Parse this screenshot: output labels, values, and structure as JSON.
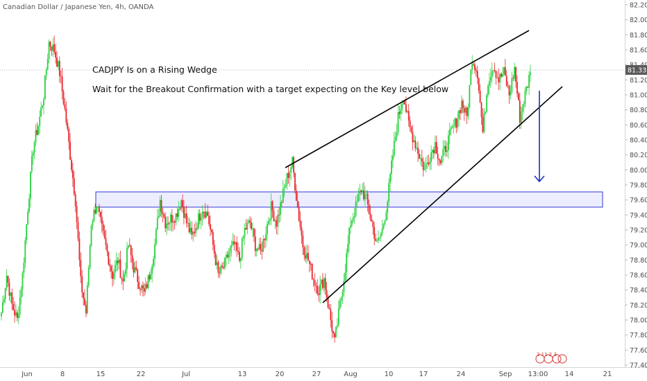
{
  "header": {
    "symbol_title": "Canadian Dollar / Japanese Yen, 4h, OANDA"
  },
  "annotations": {
    "line1": "CADJPY Is on a Rising Wedge",
    "line2": "Wait for the Breakout Confirmation with a target expecting on the Key level below"
  },
  "price_badge": "81.334",
  "events_marker": "2 11 2 3",
  "colors": {
    "up": "#26d13d",
    "down": "#e8242a",
    "zone_fill": "#eceeff",
    "zone_stroke": "#2f37d6",
    "arrow": "#1c2fb8",
    "badge_bg": "#5a5a5a",
    "axis_text": "#4a4a4a",
    "event_marker": "#d9534f"
  },
  "chart_data": {
    "type": "candlestick",
    "title": "Canadian Dollar / Japanese Yen, 4h, OANDA",
    "y_ticks": [
      "82.200",
      "82.000",
      "81.800",
      "81.600",
      "81.400",
      "81.200",
      "81.000",
      "80.800",
      "80.600",
      "80.400",
      "80.200",
      "80.000",
      "79.800",
      "79.600",
      "79.400",
      "79.200",
      "79.000",
      "78.800",
      "78.600",
      "78.400",
      "78.200",
      "78.000",
      "77.800",
      "77.600",
      "77.400"
    ],
    "x_ticks": [
      "Jun",
      "8",
      "15",
      "22",
      "Jul",
      "13",
      "20",
      "27",
      "Aug",
      "10",
      "17",
      "24",
      "Sep",
      "13:00",
      "14",
      "21"
    ],
    "ylim": [
      77.4,
      82.2
    ],
    "last_price": 81.334,
    "key_level_zone": {
      "low": 79.5,
      "high": 79.7
    },
    "wedge_upper_line": {
      "from": {
        "date": "Jul 21",
        "price": 80.02
      },
      "to": {
        "date": "Sep 5",
        "price": 81.9
      }
    },
    "wedge_lower_line": {
      "from": {
        "date": "Jul 27",
        "price": 78.26
      },
      "to": {
        "date": "Sep 8",
        "price": 81.08
      }
    },
    "path_points": [
      [
        78.1,
        "Jun 0"
      ],
      [
        78.6,
        "Jun 1"
      ],
      [
        78.2,
        "Jun 2"
      ],
      [
        78.0,
        "Jun 3"
      ],
      [
        78.6,
        "Jun 4"
      ],
      [
        79.5,
        "Jun 5"
      ],
      [
        80.3,
        "Jun 6"
      ],
      [
        80.6,
        "Jun 7"
      ],
      [
        81.0,
        "Jun 8"
      ],
      [
        81.7,
        "Jun 9"
      ],
      [
        81.6,
        "Jun 10"
      ],
      [
        81.3,
        "Jun 11"
      ],
      [
        80.8,
        "Jun 12"
      ],
      [
        80.2,
        "Jun 13"
      ],
      [
        79.6,
        "Jun 14"
      ],
      [
        78.5,
        "Jun 15"
      ],
      [
        78.1,
        "Jun 16"
      ],
      [
        79.3,
        "Jun 17"
      ],
      [
        79.55,
        "Jun 18"
      ],
      [
        79.2,
        "Jun 19"
      ],
      [
        78.9,
        "Jun 20"
      ],
      [
        78.6,
        "Jun 21"
      ],
      [
        78.8,
        "Jun 22"
      ],
      [
        78.5,
        "Jun 23"
      ],
      [
        79.0,
        "Jun 24"
      ],
      [
        78.7,
        "Jun 25"
      ],
      [
        78.5,
        "Jun 26"
      ],
      [
        78.35,
        "Jun 27"
      ],
      [
        78.6,
        "Jun 28"
      ],
      [
        79.0,
        "Jun 29"
      ],
      [
        79.6,
        "Jul 1"
      ],
      [
        79.3,
        "Jul 2"
      ],
      [
        79.35,
        "Jul 3"
      ],
      [
        79.4,
        "Jul 4"
      ],
      [
        79.6,
        "Jul 5"
      ],
      [
        79.3,
        "Jul 6"
      ],
      [
        79.1,
        "Jul 7"
      ],
      [
        79.3,
        "Jul 8"
      ],
      [
        79.5,
        "Jul 9"
      ],
      [
        79.4,
        "Jul 10"
      ],
      [
        79.0,
        "Jul 11"
      ],
      [
        78.6,
        "Jul 12"
      ],
      [
        78.7,
        "Jul 13"
      ],
      [
        78.9,
        "Jul 14"
      ],
      [
        79.0,
        "Jul 15"
      ],
      [
        78.8,
        "Jul 16"
      ],
      [
        79.2,
        "Jul 17"
      ],
      [
        79.3,
        "Jul 18"
      ],
      [
        79.0,
        "Jul 19"
      ],
      [
        78.9,
        "Jul 20"
      ],
      [
        79.2,
        "Jul 21"
      ],
      [
        79.5,
        "Jul 22"
      ],
      [
        79.3,
        "Jul 23"
      ],
      [
        79.6,
        "Jul 24"
      ],
      [
        79.9,
        "Jul 25"
      ],
      [
        80.1,
        "Jul 26"
      ],
      [
        79.5,
        "Jul 27"
      ],
      [
        79.0,
        "Jul 28"
      ],
      [
        78.8,
        "Jul 29"
      ],
      [
        78.55,
        "Jul 30"
      ],
      [
        78.4,
        "Jul 31"
      ],
      [
        78.55,
        "Aug 1"
      ],
      [
        78.1,
        "Aug 2"
      ],
      [
        77.7,
        "Aug 3"
      ],
      [
        78.2,
        "Aug 4"
      ],
      [
        78.7,
        "Aug 5"
      ],
      [
        79.3,
        "Aug 6"
      ],
      [
        79.5,
        "Aug 7"
      ],
      [
        79.75,
        "Aug 8"
      ],
      [
        79.6,
        "Aug 9"
      ],
      [
        79.3,
        "Aug 10"
      ],
      [
        79.0,
        "Aug 11"
      ],
      [
        79.2,
        "Aug 12"
      ],
      [
        79.6,
        "Aug 13"
      ],
      [
        80.2,
        "Aug 14"
      ],
      [
        80.7,
        "Aug 15"
      ],
      [
        81.0,
        "Aug 16"
      ],
      [
        80.6,
        "Aug 17"
      ],
      [
        80.4,
        "Aug 18"
      ],
      [
        80.2,
        "Aug 19"
      ],
      [
        80.0,
        "Aug 20"
      ],
      [
        80.2,
        "Aug 21"
      ],
      [
        80.35,
        "Aug 22"
      ],
      [
        80.1,
        "Aug 23"
      ],
      [
        80.3,
        "Aug 24"
      ],
      [
        80.5,
        "Aug 25"
      ],
      [
        80.65,
        "Aug 26"
      ],
      [
        80.9,
        "Aug 27"
      ],
      [
        80.7,
        "Aug 28"
      ],
      [
        81.5,
        "Aug 29"
      ],
      [
        81.3,
        "Aug 30"
      ],
      [
        80.5,
        "Aug 31"
      ],
      [
        81.2,
        "Sep 1"
      ],
      [
        81.4,
        "Sep 2"
      ],
      [
        81.2,
        "Sep 3"
      ],
      [
        81.3,
        "Sep 4"
      ],
      [
        81.0,
        "Sep 5"
      ],
      [
        81.35,
        "Sep 6"
      ],
      [
        80.7,
        "Sep 7"
      ],
      [
        81.0,
        "Sep 8"
      ],
      [
        81.3,
        "Sep 9"
      ]
    ]
  }
}
